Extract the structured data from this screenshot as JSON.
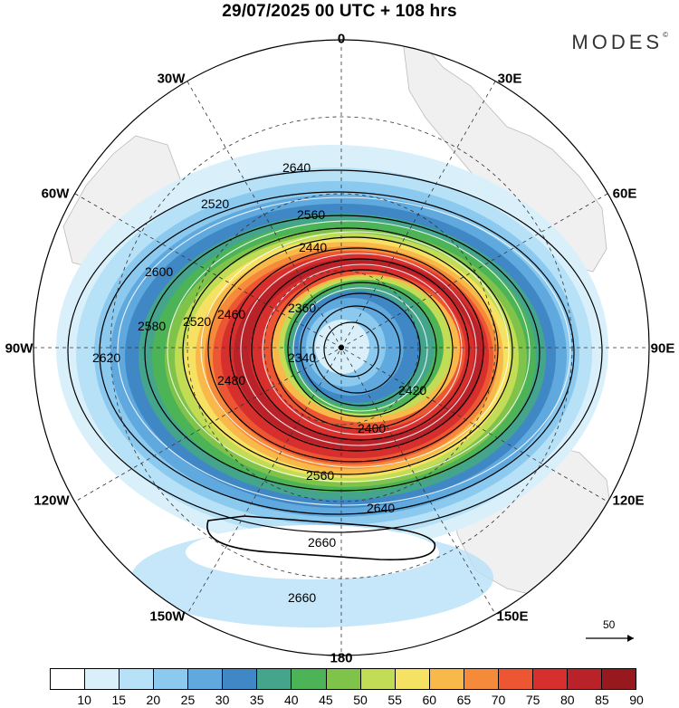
{
  "title": "29/07/2025  00 UTC  + 108 hrs",
  "brand": "MODES",
  "brand_mark": "©",
  "longitude_labels": {
    "lon_0": "0",
    "lon_30e": "30E",
    "lon_60e": "60E",
    "lon_90e": "90E",
    "lon_120e": "120E",
    "lon_150e": "150E",
    "lon_180": "180",
    "lon_150w": "150W",
    "lon_120w": "120W",
    "lon_90w": "90W",
    "lon_60w": "60W",
    "lon_30w": "30W"
  },
  "contour_labels": [
    "2640",
    "2520",
    "2560",
    "2440",
    "2600",
    "2580",
    "2520",
    "2460",
    "2360",
    "2340",
    "2620",
    "2480",
    "2420",
    "2400",
    "2560",
    "2640",
    "2660",
    "2660"
  ],
  "reference_vector": "50",
  "colorbar": {
    "ticks": [
      "10",
      "15",
      "20",
      "25",
      "30",
      "35",
      "40",
      "45",
      "50",
      "55",
      "60",
      "65",
      "70",
      "75",
      "80",
      "85",
      "90"
    ],
    "colors": [
      "#ffffff",
      "#d9f0fb",
      "#b7e1f7",
      "#8cc9ee",
      "#5fa9de",
      "#3f88c5",
      "#44a58c",
      "#4cb357",
      "#7fc34b",
      "#c2dc55",
      "#f6e262",
      "#f8b94a",
      "#f48a3a",
      "#ec5632",
      "#d62f2e",
      "#b92228",
      "#97181d"
    ]
  }
}
